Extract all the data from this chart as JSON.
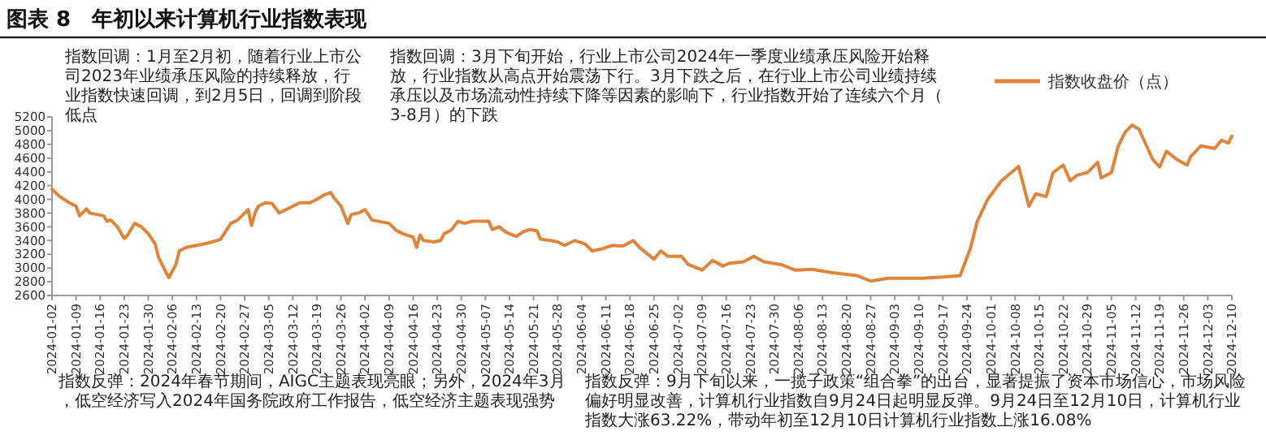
{
  "chart_data": {
    "type": "line",
    "title": "图表 8　年初以来计算机行业指数表现",
    "xlim": [
      "2024-01-02",
      "2024-12-10"
    ],
    "xticks": [
      "2024-01-02",
      "2024-01-09",
      "2024-01-16",
      "2024-01-23",
      "2024-01-30",
      "2024-02-06",
      "2024-02-13",
      "2024-02-20",
      "2024-02-27",
      "2024-03-05",
      "2024-03-12",
      "2024-03-19",
      "2024-03-26",
      "2024-04-02",
      "2024-04-09",
      "2024-04-16",
      "2024-04-23",
      "2024-04-30",
      "2024-05-07",
      "2024-05-14",
      "2024-05-21",
      "2024-05-28",
      "2024-06-04",
      "2024-06-11",
      "2024-06-18",
      "2024-06-25",
      "2024-07-02",
      "2024-07-09",
      "2024-07-16",
      "2024-07-23",
      "2024-07-30",
      "2024-08-06",
      "2024-08-13",
      "2024-08-20",
      "2024-08-27",
      "2024-09-03",
      "2024-09-10",
      "2024-09-17",
      "2024-09-24",
      "2024-10-01",
      "2024-10-08",
      "2024-10-15",
      "2024-10-22",
      "2024-10-29",
      "2024-11-05",
      "2024-11-12",
      "2024-11-19",
      "2024-11-26",
      "2024-12-03",
      "2024-12-10"
    ],
    "ylim": [
      2600,
      5200
    ],
    "yticks": [
      2600,
      2800,
      3000,
      3200,
      3400,
      3600,
      3800,
      4000,
      4200,
      4400,
      4600,
      4800,
      5000,
      5200
    ],
    "legend": "top right",
    "series": [
      {
        "name": "指数收盘价（点）",
        "color": "#e0843a",
        "x": [
          "2024-01-02",
          "2024-01-04",
          "2024-01-07",
          "2024-01-09",
          "2024-01-10",
          "2024-01-12",
          "2024-01-13",
          "2024-01-15",
          "2024-01-17",
          "2024-01-18",
          "2024-01-19",
          "2024-01-21",
          "2024-01-23",
          "2024-01-24",
          "2024-01-26",
          "2024-01-28",
          "2024-01-30",
          "2024-02-01",
          "2024-02-02",
          "2024-02-04",
          "2024-02-05",
          "2024-02-07",
          "2024-02-08",
          "2024-02-10",
          "2024-02-13",
          "2024-02-16",
          "2024-02-19",
          "2024-02-20",
          "2024-02-23",
          "2024-02-25",
          "2024-02-28",
          "2024-02-29",
          "2024-03-01",
          "2024-03-02",
          "2024-03-04",
          "2024-03-06",
          "2024-03-08",
          "2024-03-10",
          "2024-03-12",
          "2024-03-14",
          "2024-03-17",
          "2024-03-19",
          "2024-03-21",
          "2024-03-23",
          "2024-03-24",
          "2024-03-26",
          "2024-03-28",
          "2024-03-29",
          "2024-03-31",
          "2024-04-02",
          "2024-04-04",
          "2024-04-06",
          "2024-04-09",
          "2024-04-11",
          "2024-04-13",
          "2024-04-16",
          "2024-04-17",
          "2024-04-18",
          "2024-04-19",
          "2024-04-22",
          "2024-04-24",
          "2024-04-25",
          "2024-04-27",
          "2024-04-29",
          "2024-05-01",
          "2024-05-03",
          "2024-05-08",
          "2024-05-09",
          "2024-05-11",
          "2024-05-13",
          "2024-05-15",
          "2024-05-16",
          "2024-05-18",
          "2024-05-20",
          "2024-05-22",
          "2024-05-23",
          "2024-05-26",
          "2024-05-28",
          "2024-05-30",
          "2024-06-02",
          "2024-06-05",
          "2024-06-07",
          "2024-06-10",
          "2024-06-13",
          "2024-06-16",
          "2024-06-19",
          "2024-06-21",
          "2024-06-25",
          "2024-06-27",
          "2024-06-29",
          "2024-07-03",
          "2024-07-05",
          "2024-07-09",
          "2024-07-12",
          "2024-07-15",
          "2024-07-17",
          "2024-07-21",
          "2024-07-24",
          "2024-07-27",
          "2024-08-01",
          "2024-08-05",
          "2024-08-10",
          "2024-08-16",
          "2024-08-23",
          "2024-08-27",
          "2024-09-01",
          "2024-09-06",
          "2024-09-11",
          "2024-09-17",
          "2024-09-22",
          "2024-09-25",
          "2024-09-27",
          "2024-09-30",
          "2024-10-04",
          "2024-10-09",
          "2024-10-12",
          "2024-10-14",
          "2024-10-17",
          "2024-10-19",
          "2024-10-22",
          "2024-10-24",
          "2024-10-26",
          "2024-10-29",
          "2024-11-01",
          "2024-11-02",
          "2024-11-05",
          "2024-11-07",
          "2024-11-09",
          "2024-11-11",
          "2024-11-13",
          "2024-11-17",
          "2024-11-19",
          "2024-11-21",
          "2024-11-24",
          "2024-11-27",
          "2024-11-28",
          "2024-12-01",
          "2024-12-05",
          "2024-12-07",
          "2024-12-09",
          "2024-12-10"
        ],
        "values": [
          4150,
          4050,
          3950,
          3900,
          3760,
          3860,
          3800,
          3780,
          3760,
          3680,
          3700,
          3600,
          3430,
          3480,
          3650,
          3600,
          3500,
          3350,
          3150,
          2950,
          2860,
          3050,
          3250,
          3300,
          3330,
          3360,
          3400,
          3420,
          3650,
          3700,
          3850,
          3620,
          3800,
          3900,
          3950,
          3940,
          3800,
          3850,
          3900,
          3950,
          3950,
          4000,
          4060,
          4100,
          4020,
          3900,
          3650,
          3780,
          3800,
          3850,
          3700,
          3680,
          3650,
          3550,
          3500,
          3450,
          3300,
          3480,
          3400,
          3380,
          3400,
          3500,
          3550,
          3680,
          3650,
          3680,
          3680,
          3560,
          3600,
          3520,
          3480,
          3460,
          3530,
          3560,
          3540,
          3420,
          3400,
          3380,
          3330,
          3400,
          3350,
          3250,
          3280,
          3330,
          3320,
          3400,
          3290,
          3130,
          3250,
          3170,
          3170,
          3050,
          2970,
          3110,
          3030,
          3070,
          3090,
          3170,
          3090,
          3050,
          2970,
          2980,
          2930,
          2890,
          2810,
          2850,
          2850,
          2850,
          2870,
          2890,
          3290,
          3680,
          4000,
          4270,
          4480,
          3900,
          4080,
          4040,
          4390,
          4500,
          4270,
          4350,
          4390,
          4540,
          4310,
          4390,
          4780,
          4980,
          5080,
          5020,
          4580,
          4470,
          4700,
          4580,
          4500,
          4620,
          4780,
          4740,
          4860,
          4820,
          4920
        ]
      }
    ],
    "annotations": [
      "指数回调：1月至2月初，随着行业上市公司2023年业绩承压风险的持续释放，行业指数快速回调，到2月5日，回调到阶段低点",
      "指数反弹：2024年春节期间，AIGC主题表现亮眼；另外，2024年3月，低空经济写入2024年国务院政府工作报告，低空经济主题表现强势",
      "指数回调：3月下旬开始，行业上市公司2024年一季度业绩承压风险开始释放，行业指数从高点开始震荡下行。3月下跌之后，在行业上市公司业绩持续承压以及市场流动性持续下降等因素的影响下，行业指数开始了连续六个月（3-8月）的下跌",
      "指数反弹：9月下旬以来，一揽子政策“组合拳”的出台，显著提振了资本市场信心，市场风险偏好明显改善，计算机行业指数自9月24日起明显反弹。9月24日至12月10日，计算机行业指数大涨63.22%，带动年初至12月10日计算机行业指数上涨16.08%"
    ]
  }
}
